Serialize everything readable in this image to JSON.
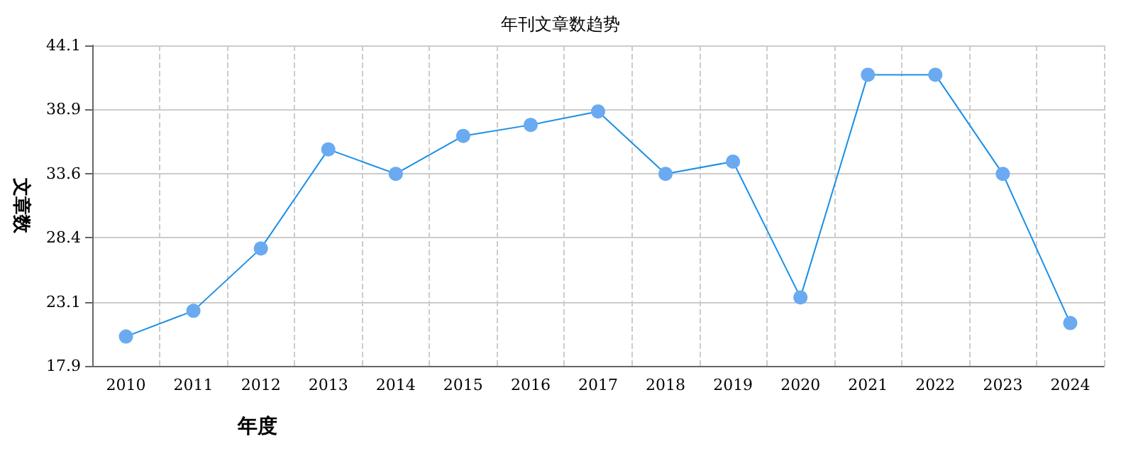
{
  "chart_data": {
    "type": "line",
    "title": "年刊文章数趋势",
    "xlabel": "年度",
    "ylabel": "文章数",
    "categories": [
      "2010",
      "2011",
      "2012",
      "2013",
      "2014",
      "2015",
      "2016",
      "2017",
      "2018",
      "2019",
      "2020",
      "2021",
      "2022",
      "2023",
      "2024"
    ],
    "series": [
      {
        "color": "#1a8fe6",
        "values": [
          20.3,
          22.4,
          27.5,
          35.6,
          33.6,
          36.7,
          37.6,
          38.7,
          33.6,
          34.6,
          23.5,
          41.7,
          41.7,
          33.6,
          21.4
        ]
      }
    ],
    "ylim": [
      17.9,
      44.1
    ],
    "yticks": [
      17.9,
      23.1,
      28.4,
      33.6,
      38.9,
      44.1
    ],
    "grid": true,
    "marker": "circle",
    "line_style": "solid"
  }
}
